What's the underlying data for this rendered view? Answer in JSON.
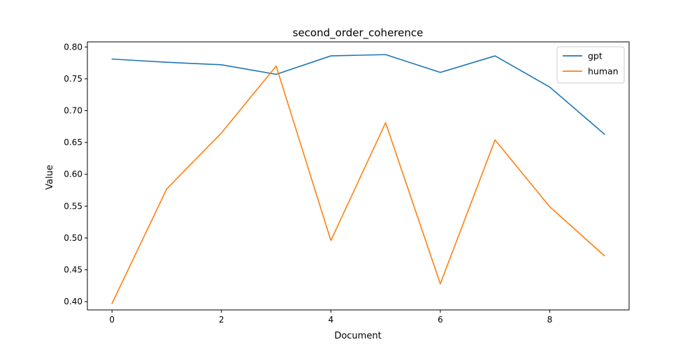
{
  "chart_data": {
    "type": "line",
    "title": "second_order_coherence",
    "xlabel": "Document",
    "ylabel": "Value",
    "x": [
      0,
      1,
      2,
      3,
      4,
      5,
      6,
      7,
      8,
      9
    ],
    "xlim": [
      -0.45,
      9.45
    ],
    "ylim": [
      0.387,
      0.808
    ],
    "xticks": [
      0,
      2,
      4,
      6,
      8
    ],
    "yticks": [
      0.4,
      0.45,
      0.5,
      0.55,
      0.6,
      0.65,
      0.7,
      0.75,
      0.8
    ],
    "grid": false,
    "legend_position": "top-right",
    "series": [
      {
        "name": "gpt",
        "color": "#1f77b4",
        "values": [
          0.781,
          0.776,
          0.772,
          0.757,
          0.786,
          0.788,
          0.76,
          0.786,
          0.737,
          0.663
        ]
      },
      {
        "name": "human",
        "color": "#ff7f0e",
        "values": [
          0.397,
          0.577,
          0.665,
          0.77,
          0.496,
          0.681,
          0.428,
          0.654,
          0.549,
          0.472
        ]
      }
    ]
  }
}
